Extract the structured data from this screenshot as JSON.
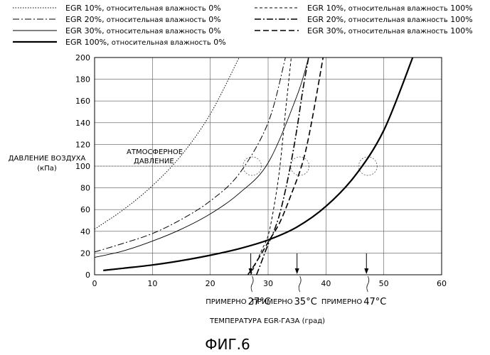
{
  "chart_data": {
    "type": "line",
    "title": "",
    "figure_caption": "ФИГ.6",
    "xlabel": "ТЕМПЕРАТУРА EGR-ГАЗА (град)",
    "ylabel_line1": "ДАВЛЕНИЕ ВОЗДУХА",
    "ylabel_line2": "(кПа)",
    "xlim": [
      0,
      60
    ],
    "ylim": [
      0,
      200
    ],
    "xticks": [
      0,
      10,
      20,
      30,
      40,
      50,
      60
    ],
    "yticks": [
      0,
      20,
      40,
      60,
      80,
      100,
      120,
      140,
      160,
      180,
      200
    ],
    "grid": true,
    "legend_position": "top",
    "annotations": {
      "atmospheric_line1": "АТМОСФЕРНОЕ",
      "atmospheric_line2": "ДАВЛЕНИЕ",
      "atmospheric_pressure": 100,
      "approx_word": "ПРИМЕРНО",
      "markers": [
        {
          "x": 27,
          "label": "27°C"
        },
        {
          "x": 35,
          "label": "35°C"
        },
        {
          "x": 47,
          "label": "47°C"
        }
      ]
    },
    "series": [
      {
        "name": "EGR 10%, относительная влажность 0%",
        "x": [
          0,
          5,
          10,
          15,
          20,
          25
        ],
        "y": [
          42,
          60,
          82,
          110,
          148,
          200
        ]
      },
      {
        "name": "EGR 20%, относительная влажность 0%",
        "x": [
          0,
          5,
          10,
          15,
          20,
          25,
          30,
          33
        ],
        "y": [
          21,
          29,
          38,
          51,
          68,
          93,
          140,
          200
        ]
      },
      {
        "name": "EGR 30%, относительная влажность 0%",
        "x": [
          0,
          5,
          10,
          15,
          20,
          25,
          30,
          35,
          37
        ],
        "y": [
          16,
          22,
          31,
          42,
          56,
          75,
          103,
          165,
          200
        ]
      },
      {
        "name": "EGR 100%, относительная влажность 0%",
        "x": [
          1.5,
          5,
          10,
          15,
          20,
          25,
          30,
          35,
          40,
          45,
          50,
          55
        ],
        "y": [
          4,
          6,
          9,
          13,
          18,
          24,
          32,
          44,
          63,
          91,
          133,
          200
        ]
      },
      {
        "name": "EGR 10%, относительная влажность 100%",
        "x": [
          27,
          28,
          29,
          30,
          31,
          32,
          33,
          34
        ],
        "y": [
          0,
          12,
          24,
          36,
          62,
          98,
          150,
          200
        ]
      },
      {
        "name": "EGR 20%, относительная влажность 100%",
        "x": [
          28,
          29,
          30,
          31,
          32,
          33,
          34,
          35,
          36,
          37
        ],
        "y": [
          0,
          14,
          28,
          40,
          56,
          78,
          104,
          135,
          170,
          200
        ]
      },
      {
        "name": "EGR 30%, относительная влажность 100%",
        "x": [
          26.5,
          28,
          30,
          32,
          34,
          36,
          37.5,
          39.5
        ],
        "y": [
          0,
          12,
          30,
          48,
          74,
          104,
          140,
          200
        ]
      }
    ],
    "legend_left": [
      {
        "prefix": "EGR 10%,",
        "suffix": " относительная влажность",
        "pct": " 0%"
      },
      {
        "prefix": "EGR 20%,",
        "suffix": " относительная влажность",
        "pct": " 0%"
      },
      {
        "prefix": "EGR 30%,",
        "suffix": " относительная влажность",
        "pct": " 0%"
      },
      {
        "prefix": "EGR 100%,",
        "suffix": " относительная влажность",
        "pct": " 0%"
      }
    ],
    "legend_right": [
      {
        "prefix": "EGR 10%,",
        "suffix": " относительная влажность",
        "pct": " 100%"
      },
      {
        "prefix": "EGR 20%,",
        "suffix": " относительная влажность",
        "pct": " 100%"
      },
      {
        "prefix": "EGR 30%,",
        "suffix": " относительная влажность",
        "pct": " 100%"
      }
    ]
  }
}
